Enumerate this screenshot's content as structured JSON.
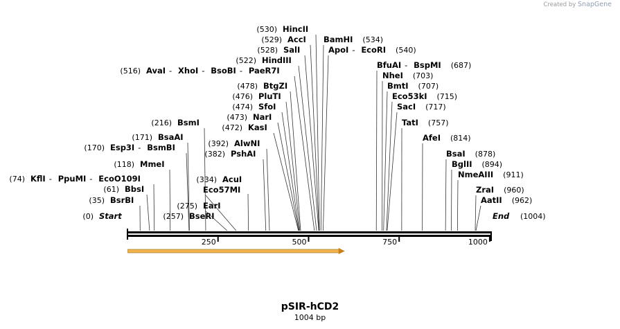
{
  "credit": {
    "prefix": "Created by",
    "brand": "SnapGene"
  },
  "map": {
    "name": "pSIR-hCD2",
    "length_label": "1004 bp",
    "length_bp": 1004,
    "start_label": "Start",
    "start_pos": "(0)",
    "end_label": "End",
    "end_pos": "(1004)",
    "scale_ticks": [
      "250",
      "500",
      "750",
      "1000"
    ],
    "feature_color": "#f1b44c"
  },
  "features": [
    {
      "name": "orange-feature-arrow",
      "start_bp": 1,
      "end_bp": 600,
      "direction": "forward"
    }
  ],
  "sites": [
    {
      "pos": "(35)",
      "bp": 35,
      "names": [
        "BsrBI"
      ]
    },
    {
      "pos": "(61)",
      "bp": 61,
      "names": [
        "BbsI"
      ]
    },
    {
      "pos": "(74)",
      "bp": 74,
      "names": [
        "KflI",
        "PpuMI",
        "EcoO109I"
      ]
    },
    {
      "pos": "(118)",
      "bp": 118,
      "names": [
        "MmeI"
      ]
    },
    {
      "pos": "(170)",
      "bp": 170,
      "names": [
        "Esp3I",
        "BsmBI"
      ]
    },
    {
      "pos": "(171)",
      "bp": 171,
      "names": [
        "BsaAI"
      ]
    },
    {
      "pos": "(216)",
      "bp": 216,
      "names": [
        "BsmI"
      ]
    },
    {
      "pos": "(257)",
      "bp": 257,
      "names": [
        "BseRI"
      ]
    },
    {
      "pos": "(275)",
      "bp": 275,
      "names": [
        "EarI"
      ]
    },
    {
      "pos": "",
      "bp": 300,
      "names": [
        "Eco57MI"
      ]
    },
    {
      "pos": "(334)",
      "bp": 334,
      "names": [
        "AcuI"
      ]
    },
    {
      "pos": "(382)",
      "bp": 382,
      "names": [
        "PshAI"
      ]
    },
    {
      "pos": "(392)",
      "bp": 392,
      "names": [
        "AlwNI"
      ]
    },
    {
      "pos": "(472)",
      "bp": 472,
      "names": [
        "KasI"
      ]
    },
    {
      "pos": "(473)",
      "bp": 473,
      "names": [
        "NarI"
      ]
    },
    {
      "pos": "(474)",
      "bp": 474,
      "names": [
        "SfoI"
      ]
    },
    {
      "pos": "(476)",
      "bp": 476,
      "names": [
        "PluTI"
      ]
    },
    {
      "pos": "(478)",
      "bp": 478,
      "names": [
        "BtgZI"
      ]
    },
    {
      "pos": "(516)",
      "bp": 516,
      "names": [
        "AvaI",
        "XhoI",
        "BsoBI",
        "PaeR7I"
      ]
    },
    {
      "pos": "(522)",
      "bp": 522,
      "names": [
        "HindIII"
      ]
    },
    {
      "pos": "(528)",
      "bp": 528,
      "names": [
        "SalI"
      ]
    },
    {
      "pos": "(529)",
      "bp": 529,
      "names": [
        "AccI"
      ]
    },
    {
      "pos": "(530)",
      "bp": 530,
      "names": [
        "HincII"
      ]
    },
    {
      "pos": "(534)",
      "bp": 534,
      "names": [
        "BamHI"
      ]
    },
    {
      "pos": "(540)",
      "bp": 540,
      "names": [
        "ApoI",
        "EcoRI"
      ]
    },
    {
      "pos": "(687)",
      "bp": 687,
      "names": [
        "BfuAI",
        "BspMI"
      ]
    },
    {
      "pos": "(703)",
      "bp": 703,
      "names": [
        "NheI"
      ]
    },
    {
      "pos": "(707)",
      "bp": 707,
      "names": [
        "BmtI"
      ]
    },
    {
      "pos": "(715)",
      "bp": 715,
      "names": [
        "Eco53kI"
      ]
    },
    {
      "pos": "(717)",
      "bp": 717,
      "names": [
        "SacI"
      ]
    },
    {
      "pos": "(757)",
      "bp": 757,
      "names": [
        "TatI"
      ]
    },
    {
      "pos": "(814)",
      "bp": 814,
      "names": [
        "AfeI"
      ]
    },
    {
      "pos": "(878)",
      "bp": 878,
      "names": [
        "BsaI"
      ]
    },
    {
      "pos": "(894)",
      "bp": 894,
      "names": [
        "BglII"
      ]
    },
    {
      "pos": "(911)",
      "bp": 911,
      "names": [
        "NmeAIII"
      ]
    },
    {
      "pos": "(960)",
      "bp": 960,
      "names": [
        "ZraI"
      ]
    },
    {
      "pos": "(962)",
      "bp": 962,
      "names": [
        "AatII"
      ]
    }
  ]
}
